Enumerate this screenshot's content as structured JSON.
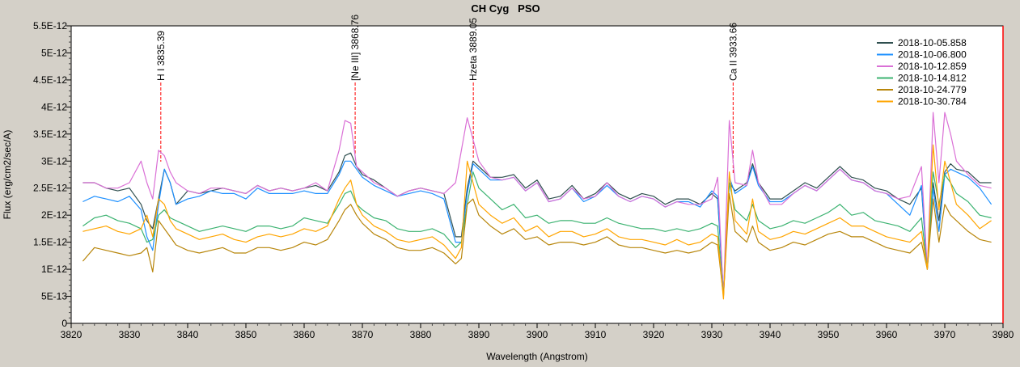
{
  "chart_data": {
    "type": "line",
    "title": "CH Cyg   PSO",
    "xlabel": "Wavelength (Angstrom)",
    "ylabel": "Flux (erg/cm2/sec/A)",
    "xlim": [
      3820,
      3980
    ],
    "ylim": [
      0,
      5.5
    ],
    "y_scale_note": "values in units of 1E-12",
    "x_ticks": [
      "3820",
      "3830",
      "3840",
      "3850",
      "3860",
      "3870",
      "3880",
      "3890",
      "3900",
      "3910",
      "3920",
      "3930",
      "3940",
      "3950",
      "3960",
      "3970",
      "3980"
    ],
    "y_ticks": [
      "0",
      "5E-13",
      "1E-12",
      "1.5E-12",
      "2E-12",
      "2.5E-12",
      "3E-12",
      "3.5E-12",
      "4E-12",
      "4.5E-12",
      "5E-12",
      "5.5E-12"
    ],
    "legend_position": "top-right",
    "line_markers": [
      {
        "label": "H I 3835.39",
        "x": 3835.39
      },
      {
        "label": "[Ne III] 3868.76",
        "x": 3868.76
      },
      {
        "label": "Hzeta 3889.05",
        "x": 3889.05
      },
      {
        "label": "Ca II 3933.66",
        "x": 3933.66
      }
    ],
    "x": [
      3822,
      3824,
      3826,
      3828,
      3830,
      3832,
      3833,
      3834,
      3835,
      3836,
      3837,
      3838,
      3840,
      3842,
      3844,
      3846,
      3848,
      3850,
      3852,
      3854,
      3856,
      3858,
      3860,
      3862,
      3864,
      3866,
      3867,
      3868,
      3869,
      3870,
      3872,
      3874,
      3876,
      3878,
      3880,
      3882,
      3884,
      3886,
      3887,
      3888,
      3889,
      3890,
      3892,
      3894,
      3896,
      3898,
      3900,
      3902,
      3904,
      3906,
      3908,
      3910,
      3912,
      3914,
      3916,
      3918,
      3920,
      3922,
      3924,
      3926,
      3928,
      3930,
      3931,
      3932,
      3933,
      3934,
      3936,
      3937,
      3938,
      3940,
      3942,
      3944,
      3946,
      3948,
      3950,
      3952,
      3954,
      3956,
      3958,
      3960,
      3962,
      3964,
      3966,
      3967,
      3968,
      3969,
      3970,
      3971,
      3972,
      3974,
      3976,
      3978
    ],
    "series": [
      {
        "name": "2018-10-05.858",
        "color": "#2f4f4f",
        "values": [
          2.6,
          2.6,
          2.5,
          2.45,
          2.5,
          2.2,
          1.9,
          1.75,
          2.3,
          2.85,
          2.6,
          2.2,
          2.45,
          2.4,
          2.45,
          2.5,
          2.45,
          2.4,
          2.55,
          2.45,
          2.5,
          2.45,
          2.5,
          2.55,
          2.45,
          2.8,
          3.1,
          3.15,
          2.9,
          2.75,
          2.65,
          2.5,
          2.35,
          2.45,
          2.5,
          2.45,
          2.4,
          1.6,
          1.6,
          2.5,
          3.0,
          2.9,
          2.7,
          2.7,
          2.75,
          2.5,
          2.65,
          2.3,
          2.35,
          2.55,
          2.3,
          2.4,
          2.6,
          2.4,
          2.3,
          2.4,
          2.35,
          2.2,
          2.3,
          2.3,
          2.2,
          2.4,
          2.3,
          0.55,
          2.6,
          2.45,
          2.6,
          2.95,
          2.6,
          2.3,
          2.3,
          2.45,
          2.6,
          2.5,
          2.7,
          2.9,
          2.7,
          2.65,
          2.5,
          2.45,
          2.3,
          2.2,
          2.5,
          1.0,
          2.6,
          1.9,
          2.8,
          2.95,
          2.85,
          2.8,
          2.6,
          2.6
        ]
      },
      {
        "name": "2018-10-06.800",
        "color": "#1e90ff",
        "values": [
          2.25,
          2.35,
          2.3,
          2.25,
          2.35,
          2.1,
          1.6,
          1.35,
          2.2,
          2.85,
          2.6,
          2.2,
          2.3,
          2.35,
          2.45,
          2.4,
          2.4,
          2.3,
          2.5,
          2.4,
          2.4,
          2.4,
          2.45,
          2.4,
          2.4,
          2.75,
          3.0,
          3.0,
          2.85,
          2.7,
          2.55,
          2.45,
          2.35,
          2.4,
          2.45,
          2.4,
          2.3,
          1.5,
          1.5,
          2.4,
          2.95,
          2.85,
          2.65,
          2.65,
          2.7,
          2.45,
          2.6,
          2.25,
          2.3,
          2.5,
          2.25,
          2.35,
          2.55,
          2.35,
          2.25,
          2.35,
          2.3,
          2.15,
          2.25,
          2.25,
          2.15,
          2.45,
          2.35,
          0.55,
          2.7,
          2.4,
          2.55,
          2.9,
          2.55,
          2.25,
          2.25,
          2.4,
          2.55,
          2.45,
          2.65,
          2.85,
          2.65,
          2.6,
          2.45,
          2.4,
          2.2,
          2.0,
          2.55,
          1.0,
          2.5,
          1.7,
          2.75,
          2.85,
          2.8,
          2.7,
          2.5,
          2.2
        ]
      },
      {
        "name": "2018-10-12.859",
        "color": "#da70d6",
        "values": [
          2.6,
          2.6,
          2.5,
          2.5,
          2.6,
          3.0,
          2.6,
          2.3,
          3.2,
          3.1,
          2.8,
          2.6,
          2.45,
          2.4,
          2.5,
          2.5,
          2.45,
          2.4,
          2.55,
          2.45,
          2.5,
          2.45,
          2.5,
          2.6,
          2.45,
          3.2,
          3.75,
          3.7,
          2.9,
          2.8,
          2.6,
          2.5,
          2.35,
          2.45,
          2.5,
          2.45,
          2.4,
          2.6,
          3.2,
          3.8,
          3.4,
          3.0,
          2.7,
          2.65,
          2.7,
          2.45,
          2.6,
          2.25,
          2.3,
          2.5,
          2.3,
          2.35,
          2.6,
          2.35,
          2.25,
          2.35,
          2.3,
          2.15,
          2.25,
          2.2,
          2.2,
          2.3,
          2.7,
          0.5,
          3.75,
          2.6,
          2.55,
          3.2,
          2.6,
          2.2,
          2.2,
          2.4,
          2.55,
          2.45,
          2.65,
          2.85,
          2.65,
          2.6,
          2.45,
          2.4,
          2.3,
          2.35,
          2.9,
          1.0,
          3.9,
          2.6,
          3.9,
          3.5,
          3.0,
          2.75,
          2.55,
          2.5
        ]
      },
      {
        "name": "2018-10-14.812",
        "color": "#3cb371",
        "values": [
          1.8,
          1.95,
          2.0,
          1.9,
          1.85,
          1.75,
          1.5,
          1.55,
          2.0,
          2.1,
          1.95,
          1.9,
          1.8,
          1.7,
          1.75,
          1.8,
          1.75,
          1.7,
          1.8,
          1.8,
          1.75,
          1.8,
          1.95,
          1.9,
          1.85,
          2.2,
          2.4,
          2.45,
          2.2,
          2.1,
          1.95,
          1.9,
          1.75,
          1.7,
          1.7,
          1.75,
          1.65,
          1.4,
          1.5,
          2.2,
          2.8,
          2.5,
          2.3,
          2.1,
          2.2,
          1.95,
          2.0,
          1.85,
          1.9,
          1.9,
          1.85,
          1.85,
          1.95,
          1.85,
          1.8,
          1.75,
          1.75,
          1.7,
          1.75,
          1.7,
          1.75,
          1.85,
          1.8,
          0.5,
          2.6,
          2.1,
          1.9,
          2.2,
          1.9,
          1.75,
          1.8,
          1.9,
          1.85,
          1.95,
          2.05,
          2.2,
          2.0,
          2.05,
          1.9,
          1.85,
          1.8,
          1.7,
          1.95,
          1.0,
          2.8,
          2.2,
          2.75,
          2.6,
          2.4,
          2.25,
          2.0,
          1.95
        ]
      },
      {
        "name": "2018-10-24.779",
        "color": "#b8860b",
        "values": [
          1.15,
          1.4,
          1.35,
          1.3,
          1.25,
          1.3,
          1.4,
          0.95,
          1.9,
          1.75,
          1.6,
          1.45,
          1.35,
          1.3,
          1.35,
          1.4,
          1.3,
          1.3,
          1.4,
          1.4,
          1.35,
          1.4,
          1.5,
          1.45,
          1.55,
          1.9,
          2.1,
          2.2,
          2.0,
          1.85,
          1.65,
          1.55,
          1.4,
          1.35,
          1.35,
          1.4,
          1.3,
          1.1,
          1.2,
          2.2,
          2.3,
          2.0,
          1.8,
          1.65,
          1.75,
          1.55,
          1.6,
          1.45,
          1.5,
          1.5,
          1.45,
          1.5,
          1.6,
          1.45,
          1.4,
          1.4,
          1.35,
          1.3,
          1.35,
          1.3,
          1.35,
          1.5,
          1.45,
          0.5,
          2.4,
          1.7,
          1.5,
          1.8,
          1.5,
          1.35,
          1.4,
          1.5,
          1.45,
          1.55,
          1.65,
          1.7,
          1.6,
          1.6,
          1.5,
          1.4,
          1.35,
          1.3,
          1.5,
          1.0,
          2.3,
          1.5,
          2.2,
          2.0,
          1.9,
          1.7,
          1.55,
          1.5
        ]
      },
      {
        "name": "2018-10-30.784",
        "color": "#ffa500",
        "values": [
          1.7,
          1.75,
          1.8,
          1.7,
          1.65,
          1.75,
          2.0,
          1.6,
          2.3,
          2.2,
          1.9,
          1.75,
          1.65,
          1.55,
          1.6,
          1.65,
          1.55,
          1.5,
          1.6,
          1.65,
          1.6,
          1.65,
          1.75,
          1.7,
          1.8,
          2.3,
          2.5,
          2.65,
          2.2,
          2.0,
          1.8,
          1.7,
          1.55,
          1.5,
          1.55,
          1.6,
          1.45,
          1.2,
          1.4,
          3.0,
          2.6,
          2.2,
          2.0,
          1.85,
          1.95,
          1.7,
          1.8,
          1.6,
          1.7,
          1.7,
          1.6,
          1.65,
          1.75,
          1.6,
          1.55,
          1.55,
          1.5,
          1.45,
          1.55,
          1.45,
          1.5,
          1.65,
          1.6,
          0.45,
          2.8,
          1.9,
          1.65,
          2.3,
          1.7,
          1.55,
          1.6,
          1.7,
          1.65,
          1.75,
          1.85,
          1.95,
          1.8,
          1.8,
          1.7,
          1.6,
          1.55,
          1.5,
          1.7,
          1.0,
          3.3,
          2.1,
          3.0,
          2.6,
          2.2,
          2.0,
          1.75,
          1.9
        ]
      }
    ]
  }
}
